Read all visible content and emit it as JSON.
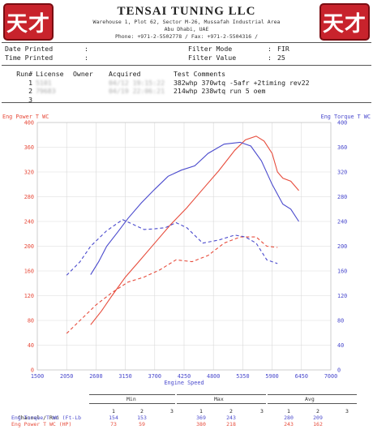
{
  "header": {
    "logo_glyph": "天才",
    "company_name": "TENSAI TUNING LLC",
    "address_line1": "Warehouse 1, Plot 62, Sector M-26, Mussafah Industrial Area",
    "address_line2": "Abu Dhabi, UAE",
    "contact_line": "Phone: +971-2-5502778 /  Fax: +971-2-5504316 /"
  },
  "info": {
    "date_printed_label": "Date Printed",
    "time_printed_label": "Time Printed",
    "colon": ":",
    "filter_mode_label": "Filter Mode",
    "filter_value_label": "Filter Value",
    "filter_mode_value": "FIR",
    "filter_value_value": "25"
  },
  "runs": {
    "headers": {
      "run": "Run#",
      "license": "License",
      "owner": "Owner",
      "acquired": "Acquired",
      "comments": "Test Comments"
    },
    "rows": [
      {
        "run": "1",
        "license": "5101",
        "owner": "",
        "acquired": "04/12 19:15:22",
        "comment": "382whp 370wtq -5afr +2timing rev22"
      },
      {
        "run": "2",
        "license": "79683",
        "owner": "",
        "acquired": "04/19 22:06:21",
        "comment": "214whp 238wtq run 5 oem"
      },
      {
        "run": "3",
        "license": "",
        "owner": "",
        "acquired": "",
        "comment": ""
      }
    ]
  },
  "chart_data": {
    "type": "line",
    "left_axis_title": "Eng Power T WC",
    "right_axis_title": "Eng Torque T WC",
    "x_axis_title": "Engine Speed",
    "xlim": [
      1500,
      7000
    ],
    "ylim": [
      0,
      400
    ],
    "x_ticks": [
      "1500",
      "2050",
      "2600",
      "3150",
      "3700",
      "4250",
      "4800",
      "5350",
      "5900",
      "6450",
      "7000"
    ],
    "y_ticks": [
      "0",
      "40",
      "80",
      "120",
      "160",
      "200",
      "240",
      "280",
      "320",
      "360",
      "400"
    ],
    "grid": true,
    "colors": {
      "power": "#e74c3c",
      "torque": "#4a4acd",
      "grid": "#d9d9d9"
    },
    "series": [
      {
        "name": "Eng Power T WC",
        "run": "1",
        "style": "solid",
        "color": "#e74c3c",
        "x": [
          2500,
          2700,
          2900,
          3150,
          3400,
          3700,
          4000,
          4300,
          4600,
          4900,
          5200,
          5400,
          5600,
          5750,
          5900,
          6000,
          6100,
          6250,
          6400
        ],
        "y": [
          73,
          95,
          120,
          150,
          175,
          205,
          235,
          262,
          292,
          322,
          355,
          372,
          378,
          370,
          350,
          320,
          310,
          305,
          290
        ]
      },
      {
        "name": "Eng Torque T WC",
        "run": "1",
        "style": "solid",
        "color": "#4a4acd",
        "x": [
          2500,
          2650,
          2800,
          3000,
          3200,
          3450,
          3700,
          3950,
          4200,
          4450,
          4700,
          5000,
          5300,
          5500,
          5700,
          5900,
          6100,
          6250,
          6400
        ],
        "y": [
          154,
          175,
          200,
          222,
          245,
          270,
          292,
          313,
          323,
          330,
          350,
          365,
          368,
          362,
          338,
          300,
          268,
          260,
          240
        ]
      },
      {
        "name": "Eng Power T WC",
        "run": "2",
        "style": "dashed",
        "color": "#e74c3c",
        "x": [
          2050,
          2300,
          2600,
          2900,
          3200,
          3500,
          3800,
          4100,
          4400,
          4700,
          5000,
          5300,
          5600,
          5800,
          6000
        ],
        "y": [
          59,
          80,
          105,
          125,
          142,
          150,
          162,
          178,
          175,
          185,
          205,
          215,
          215,
          200,
          198
        ]
      },
      {
        "name": "Eng Torque T WC",
        "run": "2",
        "style": "dashed",
        "color": "#4a4acd",
        "x": [
          2050,
          2300,
          2500,
          2800,
          3100,
          3300,
          3500,
          3700,
          3900,
          4100,
          4300,
          4600,
          4900,
          5200,
          5400,
          5600,
          5800,
          6000
        ],
        "y": [
          153,
          175,
          200,
          225,
          243,
          235,
          227,
          228,
          230,
          238,
          230,
          205,
          210,
          218,
          215,
          205,
          178,
          172
        ]
      }
    ]
  },
  "summary": {
    "group_min": "Min",
    "group_max": "Max",
    "group_avg": "Avg",
    "channel_label": "Channel / Run",
    "run_numbers": [
      "1",
      "2",
      "3"
    ],
    "rows": [
      {
        "label": "Eng Torque T WC (Ft-Lb",
        "color": "#4a4acd",
        "min": [
          "154",
          "153",
          ""
        ],
        "max": [
          "369",
          "243",
          ""
        ],
        "avg": [
          "280",
          "209",
          ""
        ]
      },
      {
        "label": "Eng Power T WC (HP)",
        "color": "#e74c3c",
        "min": [
          "73",
          "59",
          ""
        ],
        "max": [
          "380",
          "218",
          ""
        ],
        "avg": [
          "243",
          "162",
          ""
        ]
      }
    ]
  }
}
